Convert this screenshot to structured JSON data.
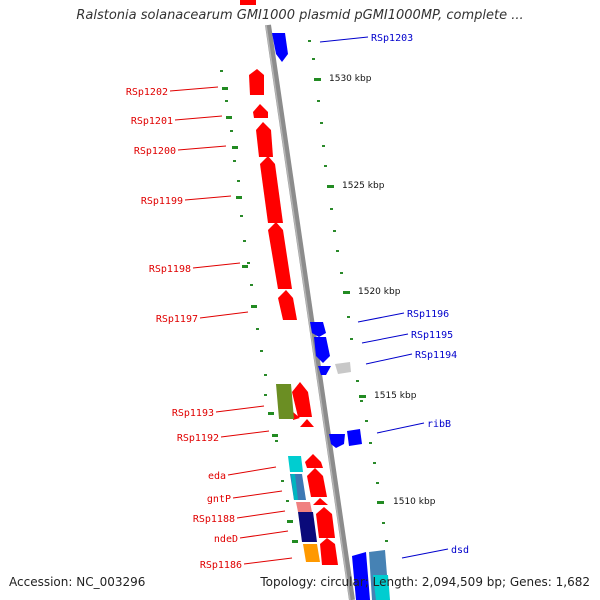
{
  "header": {
    "title": "Ralstonia solanacearum GMI1000 plasmid pGMI1000MP, complete ..."
  },
  "footer": {
    "accession": "Accession: NC_003296",
    "summary": "Topology: circular; Length: 2,094,509 bp; Genes: 1,682"
  },
  "colors": {
    "forward_gene": "#ff0000",
    "reverse_gene": "#0000ff",
    "label_red": "#e00000",
    "label_blue": "#0000cc",
    "backbone": "#8c8c8c",
    "tick": "#228b22"
  },
  "scale_labels": [
    "1530 kbp",
    "1525 kbp",
    "1520 kbp",
    "1515 kbp",
    "1510 kbp"
  ],
  "left_genes": [
    "RSp1202",
    "RSp1201",
    "RSp1200",
    "RSp1199",
    "RSp1198",
    "RSp1197",
    "RSp1193",
    "RSp1192",
    "eda",
    "gntP",
    "RSp1188",
    "ndeD",
    "RSp1186"
  ],
  "right_genes": [
    "RSp1203",
    "RSp1196",
    "RSp1195",
    "RSp1194",
    "ribB",
    "dsd"
  ]
}
